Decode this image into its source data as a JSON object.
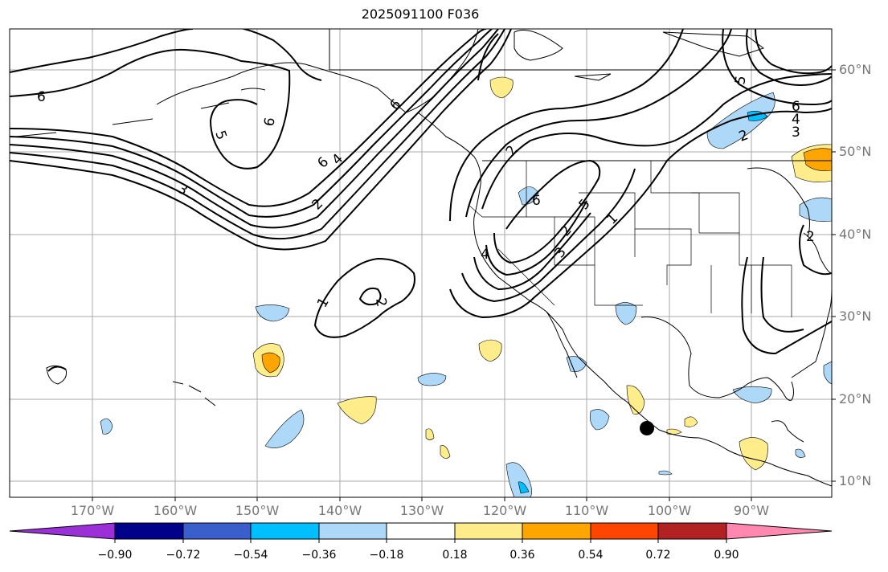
{
  "title": "2025091100 F036",
  "lat_labels": [
    "60°N",
    "50°N",
    "40°N",
    "30°N",
    "20°N",
    "10°N"
  ],
  "lon_labels": [
    "170°W",
    "160°W",
    "150°W",
    "140°W",
    "130°W",
    "120°W",
    "110°W",
    "100°W",
    "90°W"
  ],
  "colorbar": {
    "ticks": [
      "−0.90",
      "−0.72",
      "−0.54",
      "−0.36",
      "−0.18",
      "0.18",
      "0.36",
      "0.54",
      "0.72",
      "0.90"
    ],
    "colors": [
      "#9b30d9",
      "#00008b",
      "#3a5fcd",
      "#00bfff",
      "#add8f7",
      "#ffffff",
      "#ffec8b",
      "#ffa500",
      "#ff4500",
      "#b22222",
      "#ff88b0"
    ]
  },
  "contour_labels": [
    "6",
    "5",
    "6",
    "6",
    "4",
    "3",
    "2",
    "2",
    "6",
    "5",
    "4",
    "3",
    "2",
    "1",
    "1",
    "2",
    "6",
    "4",
    "3",
    "2",
    "5",
    "6",
    "2"
  ],
  "marker": "black-dot-station"
}
